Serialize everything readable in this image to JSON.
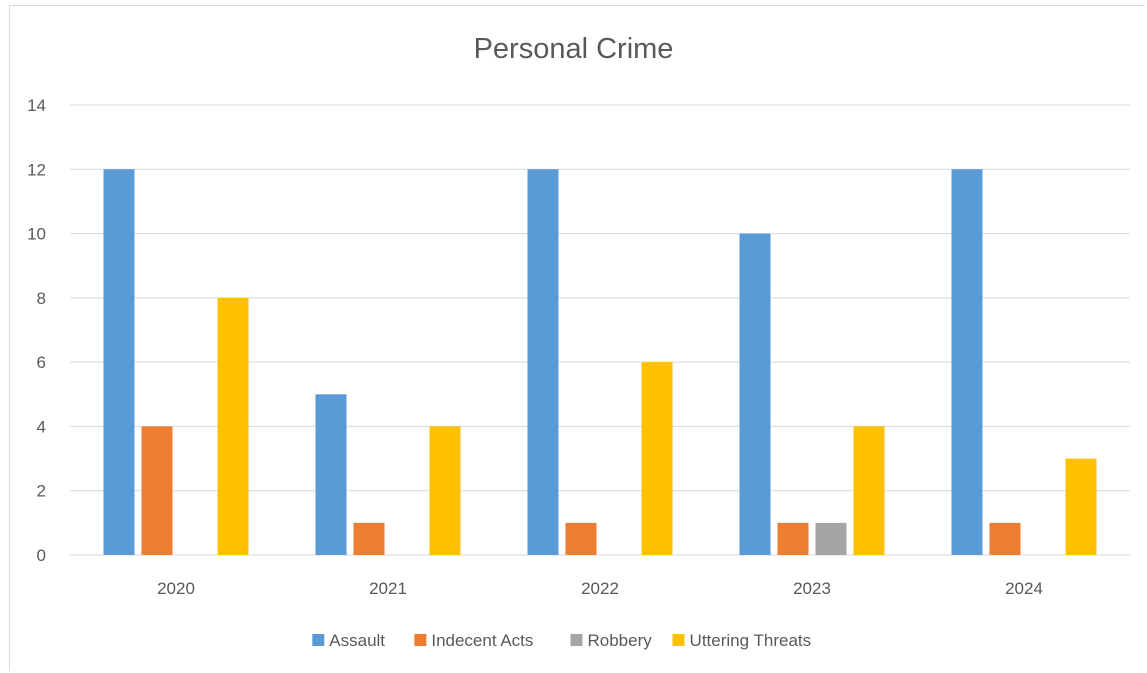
{
  "chart_data": {
    "type": "bar",
    "title": "Personal Crime",
    "categories": [
      "2020",
      "2021",
      "2022",
      "2023",
      "2024"
    ],
    "series": [
      {
        "name": "Assault",
        "color": "#5b9bd5",
        "values": [
          12,
          5,
          12,
          10,
          12
        ]
      },
      {
        "name": "Indecent Acts",
        "color": "#ed7d31",
        "values": [
          4,
          1,
          1,
          1,
          1
        ]
      },
      {
        "name": "Robbery",
        "color": "#a5a5a5",
        "values": [
          0,
          0,
          0,
          1,
          0
        ]
      },
      {
        "name": "Uttering Threats",
        "color": "#ffc000",
        "values": [
          8,
          4,
          6,
          4,
          3
        ]
      }
    ],
    "ylim": [
      0,
      14
    ],
    "yticks": [
      0,
      2,
      4,
      6,
      8,
      10,
      12,
      14
    ],
    "xlabel": "",
    "ylabel": "",
    "grid": true,
    "legend": "bottom"
  }
}
